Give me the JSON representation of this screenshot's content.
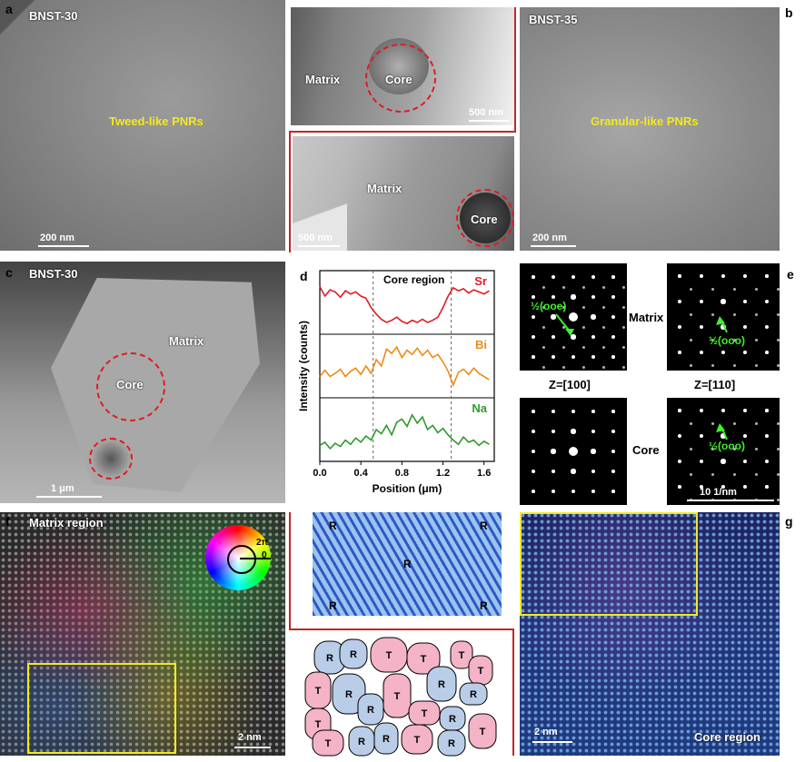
{
  "panel_letters": {
    "a": "a",
    "b": "b",
    "c": "c",
    "d": "d",
    "e": "e",
    "f": "f",
    "g": "g"
  },
  "panel_a": {
    "sample": "BNST-30",
    "label": "Tweed-like PNRs",
    "scale": "200 nm"
  },
  "panel_a_top": {
    "matrix": "Matrix",
    "core": "Core",
    "scale": "500 nm"
  },
  "panel_a_bottom": {
    "matrix": "Matrix",
    "core": "Core",
    "scale": "500 nm"
  },
  "panel_b": {
    "sample": "BNST-35",
    "label": "Granular-like PNRs",
    "scale": "200 nm"
  },
  "panel_c": {
    "sample": "BNST-30",
    "matrix": "Matrix",
    "core": "Core",
    "scale": "1 μm"
  },
  "chart_data": {
    "type": "line",
    "title": "Core region",
    "xlabel": "Position (μm)",
    "ylabel": "Intensity (counts)",
    "xlim": [
      0.0,
      1.7
    ],
    "xticks": [
      "0.0",
      "0.4",
      "0.8",
      "1.2",
      "1.6"
    ],
    "markers": [
      0.52,
      1.28
    ],
    "series": [
      {
        "name": "Sr",
        "color": "#e01b24",
        "x": [
          0.0,
          0.05,
          0.1,
          0.15,
          0.2,
          0.25,
          0.3,
          0.35,
          0.4,
          0.45,
          0.5,
          0.55,
          0.6,
          0.65,
          0.7,
          0.75,
          0.8,
          0.85,
          0.9,
          0.95,
          1.0,
          1.05,
          1.1,
          1.15,
          1.2,
          1.25,
          1.3,
          1.35,
          1.4,
          1.45,
          1.5,
          1.55,
          1.6,
          1.65
        ],
        "y": [
          0.8,
          0.62,
          0.74,
          0.7,
          0.6,
          0.72,
          0.66,
          0.7,
          0.62,
          0.58,
          0.4,
          0.28,
          0.18,
          0.12,
          0.16,
          0.22,
          0.14,
          0.1,
          0.16,
          0.12,
          0.18,
          0.12,
          0.16,
          0.22,
          0.4,
          0.62,
          0.78,
          0.72,
          0.76,
          0.68,
          0.74,
          0.7,
          0.66,
          0.72
        ]
      },
      {
        "name": "Bi",
        "color": "#f08a16",
        "x": [
          0.0,
          0.05,
          0.1,
          0.15,
          0.2,
          0.25,
          0.3,
          0.35,
          0.4,
          0.45,
          0.5,
          0.55,
          0.6,
          0.65,
          0.7,
          0.75,
          0.8,
          0.85,
          0.9,
          0.95,
          1.0,
          1.05,
          1.1,
          1.15,
          1.2,
          1.25,
          1.3,
          1.35,
          1.4,
          1.45,
          1.5,
          1.55,
          1.6,
          1.65
        ],
        "y": [
          0.3,
          0.42,
          0.3,
          0.36,
          0.44,
          0.3,
          0.4,
          0.46,
          0.34,
          0.5,
          0.36,
          0.62,
          0.5,
          0.82,
          0.74,
          0.86,
          0.66,
          0.8,
          0.72,
          0.84,
          0.7,
          0.8,
          0.66,
          0.72,
          0.58,
          0.4,
          0.14,
          0.38,
          0.44,
          0.34,
          0.46,
          0.36,
          0.3,
          0.24
        ]
      },
      {
        "name": "Na",
        "color": "#2e9a2a",
        "x": [
          0.0,
          0.05,
          0.1,
          0.15,
          0.2,
          0.25,
          0.3,
          0.35,
          0.4,
          0.45,
          0.5,
          0.55,
          0.6,
          0.65,
          0.7,
          0.75,
          0.8,
          0.85,
          0.9,
          0.95,
          1.0,
          1.05,
          1.1,
          1.15,
          1.2,
          1.25,
          1.3,
          1.35,
          1.4,
          1.45,
          1.5,
          1.55,
          1.6,
          1.65
        ],
        "y": [
          0.2,
          0.26,
          0.14,
          0.24,
          0.18,
          0.3,
          0.22,
          0.34,
          0.26,
          0.38,
          0.3,
          0.5,
          0.42,
          0.58,
          0.4,
          0.64,
          0.7,
          0.56,
          0.78,
          0.62,
          0.74,
          0.5,
          0.58,
          0.44,
          0.52,
          0.4,
          0.3,
          0.22,
          0.36,
          0.26,
          0.3,
          0.2,
          0.28,
          0.22
        ]
      }
    ]
  },
  "panel_e": {
    "matrix": "Matrix",
    "core": "Core",
    "zone100": "Z=[100]",
    "zone110": "Z=[110]",
    "ann_oee": "½(ooe)",
    "ann_ooo": "½(ooo)",
    "scale": "10 1/nm"
  },
  "panel_f": {
    "region": "Matrix region",
    "scale": "2 nm",
    "wheel_2pi": "2π",
    "wheel_0": "0"
  },
  "panel_center": {
    "r": "R",
    "t": "T"
  },
  "panel_g": {
    "region": "Core region",
    "scale": "2 nm"
  },
  "colors": {
    "accent_red": "#c0282a",
    "highlight_yellow": "#f2ea1e",
    "annot_green": "#3ef02a"
  }
}
